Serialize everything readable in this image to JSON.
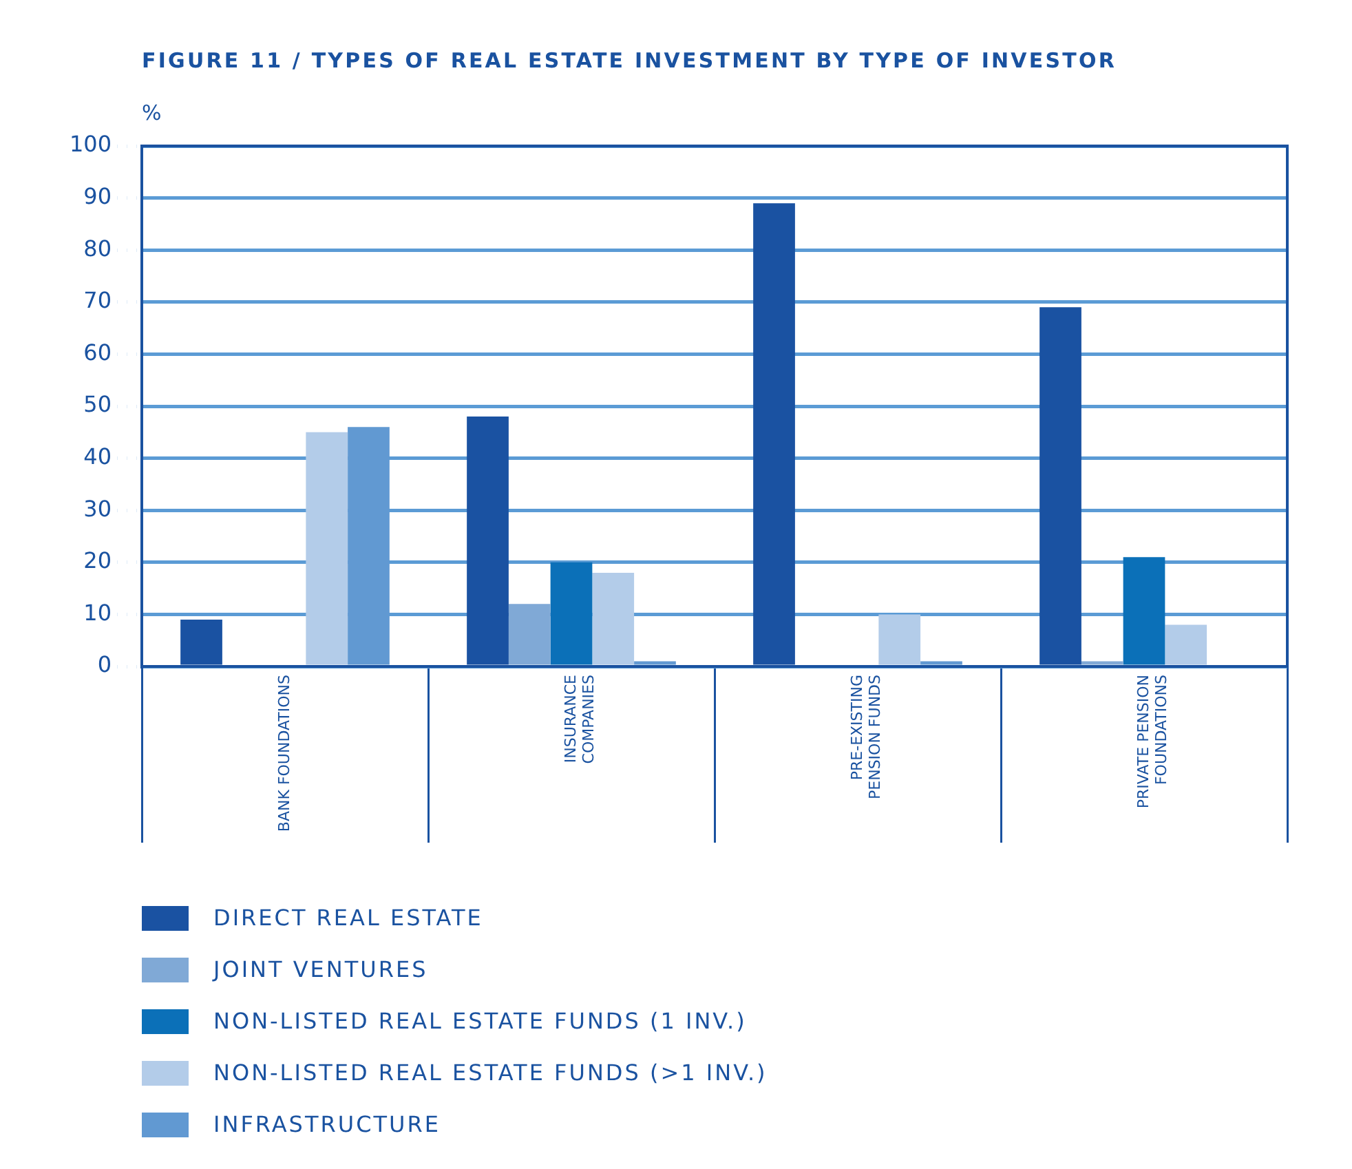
{
  "chart_data": {
    "type": "bar",
    "title": "FIGURE 11 / TYPES OF REAL ESTATE INVESTMENT BY TYPE OF INVESTOR",
    "ylabel": "%",
    "categories": [
      "BANK FOUNDATIONS",
      "INSURANCE COMPANIES",
      "PRE-EXISTING PENSION FUNDS",
      "PRIVATE PENSION FOUNDATIONS"
    ],
    "series": [
      {
        "name": "DIRECT REAL ESTATE",
        "color": "#1a52a2",
        "values": [
          9,
          48,
          89,
          69
        ]
      },
      {
        "name": "JOINT VENTURES",
        "color": "#80a9d6",
        "values": [
          0,
          12,
          0,
          1
        ]
      },
      {
        "name": "NON-LISTED REAL ESTATE FUNDS (1 INV.)",
        "color": "#0b70b8",
        "values": [
          0,
          20,
          0,
          21
        ]
      },
      {
        "name": "NON-LISTED REAL ESTATE FUNDS (>1 INV.)",
        "color": "#b3cce9",
        "values": [
          45,
          18,
          10,
          8
        ]
      },
      {
        "name": "INFRASTRUCTURE",
        "color": "#6199d2",
        "values": [
          46,
          1,
          1,
          0
        ]
      }
    ],
    "ylim": [
      0,
      100
    ],
    "yticks": [
      0,
      10,
      20,
      30,
      40,
      50,
      60,
      70,
      80,
      90,
      100
    ],
    "grid": "y",
    "legend": "bottom"
  }
}
